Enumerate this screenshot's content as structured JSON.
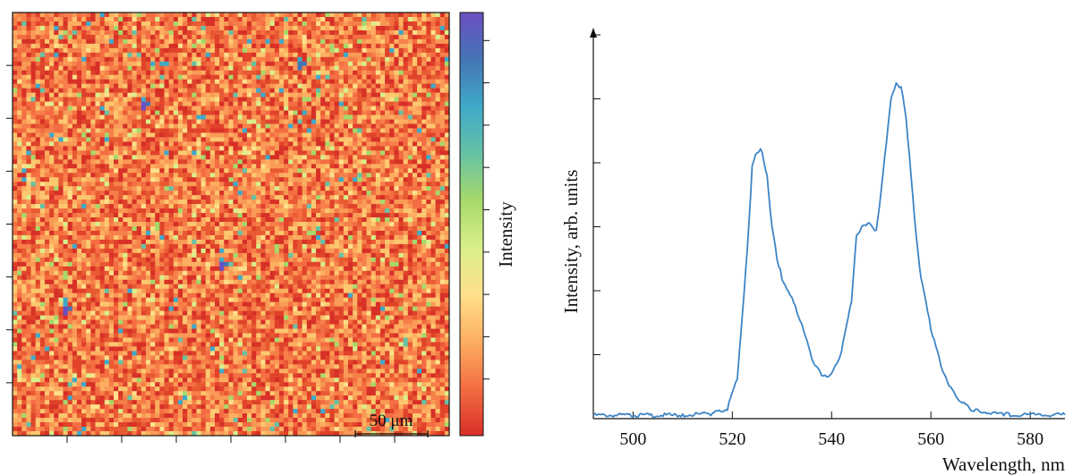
{
  "chart_data": [
    {
      "type": "heatmap",
      "title": "",
      "xlabel": "",
      "ylabel": "",
      "grid_size": [
        95,
        95
      ],
      "colorbar": {
        "label": "Intensity",
        "colors_low_to_high": [
          "#d73027",
          "#f46d43",
          "#fdae61",
          "#fee08b",
          "#d9ef8b",
          "#a6d96a",
          "#66c2a5",
          "#3fa9c9",
          "#4575b4",
          "#6a4fc0"
        ],
        "tick_count": 9
      },
      "hot_spots": [
        {
          "row": 20,
          "col": 28,
          "level": 0.95
        },
        {
          "row": 56,
          "col": 45,
          "level": 1.0
        },
        {
          "row": 66,
          "col": 11,
          "level": 1.0
        },
        {
          "row": 11,
          "col": 62,
          "level": 0.75
        }
      ],
      "scale_bar": {
        "label": "50 μm"
      }
    },
    {
      "type": "line",
      "title": "",
      "xlabel": "Wavelength, nm",
      "ylabel": "Intensity, arb. units",
      "xlim": [
        492,
        587
      ],
      "ylim": [
        0,
        1.05
      ],
      "x_ticks": [
        500,
        520,
        540,
        560,
        580
      ],
      "y_tick_count": 6,
      "series": [
        {
          "color": "#3d85c6",
          "x": [
            492,
            500,
            510,
            516,
            519,
            521,
            523,
            524,
            525,
            526,
            527,
            528,
            529,
            530,
            532,
            534,
            536,
            538,
            540,
            542,
            544,
            545,
            546,
            547,
            548,
            549,
            550,
            551,
            552,
            553,
            554,
            555,
            556,
            557,
            558,
            560,
            562,
            564,
            566,
            568,
            570,
            575,
            580,
            587
          ],
          "y": [
            0.01,
            0.01,
            0.01,
            0.015,
            0.03,
            0.12,
            0.5,
            0.75,
            0.8,
            0.8,
            0.72,
            0.57,
            0.48,
            0.42,
            0.36,
            0.28,
            0.18,
            0.13,
            0.13,
            0.2,
            0.35,
            0.55,
            0.57,
            0.58,
            0.58,
            0.56,
            0.68,
            0.82,
            0.96,
            1.0,
            0.99,
            0.9,
            0.73,
            0.55,
            0.42,
            0.27,
            0.16,
            0.09,
            0.05,
            0.03,
            0.02,
            0.012,
            0.012,
            0.012
          ]
        }
      ]
    }
  ]
}
